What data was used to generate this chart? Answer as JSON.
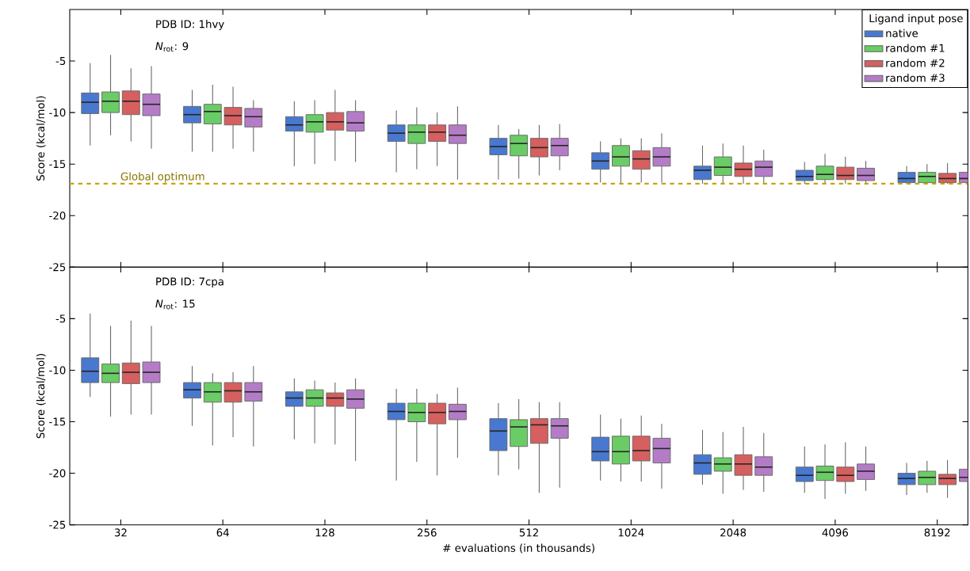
{
  "chart_data": [
    {
      "type": "box",
      "ylabel": "Score (kcal/mol)",
      "categories": [
        "32",
        "64",
        "128",
        "256",
        "512",
        "1024",
        "2048",
        "4096",
        "8192"
      ],
      "ylim": [
        -25,
        0
      ],
      "yticks": [
        -5,
        -10,
        -15,
        -20,
        -25
      ],
      "tick_labels": "y",
      "legend": "top right",
      "legend_title": "Ligand input pose",
      "grid": false,
      "annotations": [
        "PDB ID: 1hvy",
        "*N*$_{rot}$: 9"
      ],
      "ref_lines": [
        {
          "axis": "y",
          "value": -16.9,
          "label": "Global optimum",
          "color": "#c4a400",
          "line_style": "dashed"
        }
      ],
      "series": [
        {
          "name": "native",
          "color": "#4878cf",
          "boxes": [
            {
              "low": -13.2,
              "q1": -10.1,
              "median": -9.0,
              "q3": -8.1,
              "high": -5.2
            },
            {
              "low": -13.8,
              "q1": -11.0,
              "median": -10.2,
              "q3": -9.4,
              "high": -7.8
            },
            {
              "low": -15.2,
              "q1": -11.8,
              "median": -11.2,
              "q3": -10.4,
              "high": -8.9
            },
            {
              "low": -15.8,
              "q1": -12.8,
              "median": -12.0,
              "q3": -11.2,
              "high": -9.8
            },
            {
              "low": -16.5,
              "q1": -14.1,
              "median": -13.3,
              "q3": -12.5,
              "high": -11.2
            },
            {
              "low": -16.8,
              "q1": -15.5,
              "median": -14.7,
              "q3": -13.9,
              "high": -12.8
            },
            {
              "low": -16.9,
              "q1": -16.5,
              "median": -15.6,
              "q3": -15.2,
              "high": -13.2
            },
            {
              "low": -16.9,
              "q1": -16.6,
              "median": -16.2,
              "q3": -15.6,
              "high": -14.8
            },
            {
              "low": -16.9,
              "q1": -16.8,
              "median": -16.4,
              "q3": -15.8,
              "high": -15.2
            }
          ]
        },
        {
          "name": "random #1",
          "color": "#6acc65",
          "boxes": [
            {
              "low": -12.2,
              "q1": -10.0,
              "median": -8.9,
              "q3": -8.0,
              "high": -4.4
            },
            {
              "low": -13.8,
              "q1": -11.1,
              "median": -9.9,
              "q3": -9.2,
              "high": -7.3
            },
            {
              "low": -15.0,
              "q1": -11.9,
              "median": -10.9,
              "q3": -10.2,
              "high": -8.8
            },
            {
              "low": -15.5,
              "q1": -13.0,
              "median": -11.9,
              "q3": -11.2,
              "high": -9.5
            },
            {
              "low": -16.4,
              "q1": -14.2,
              "median": -13.0,
              "q3": -12.2,
              "high": -11.6
            },
            {
              "low": -16.9,
              "q1": -15.2,
              "median": -14.3,
              "q3": -13.2,
              "high": -12.5
            },
            {
              "low": -16.9,
              "q1": -16.1,
              "median": -15.3,
              "q3": -14.3,
              "high": -13.0
            },
            {
              "low": -16.9,
              "q1": -16.5,
              "median": -16.0,
              "q3": -15.2,
              "high": -14.0
            },
            {
              "low": -16.9,
              "q1": -16.8,
              "median": -16.2,
              "q3": -15.8,
              "high": -15.0
            }
          ]
        },
        {
          "name": "random #2",
          "color": "#d65f5f",
          "boxes": [
            {
              "low": -12.8,
              "q1": -10.2,
              "median": -8.9,
              "q3": -7.9,
              "high": -5.7
            },
            {
              "low": -13.5,
              "q1": -11.2,
              "median": -10.3,
              "q3": -9.5,
              "high": -7.5
            },
            {
              "low": -14.7,
              "q1": -11.7,
              "median": -10.9,
              "q3": -10.0,
              "high": -7.8
            },
            {
              "low": -15.2,
              "q1": -12.8,
              "median": -11.9,
              "q3": -11.2,
              "high": -10.0
            },
            {
              "low": -16.1,
              "q1": -14.3,
              "median": -13.4,
              "q3": -12.5,
              "high": -11.2
            },
            {
              "low": -16.8,
              "q1": -15.5,
              "median": -14.5,
              "q3": -13.7,
              "high": -12.5
            },
            {
              "low": -16.9,
              "q1": -16.2,
              "median": -15.5,
              "q3": -14.9,
              "high": -13.2
            },
            {
              "low": -16.9,
              "q1": -16.5,
              "median": -16.1,
              "q3": -15.3,
              "high": -14.3
            },
            {
              "low": -16.9,
              "q1": -16.8,
              "median": -16.4,
              "q3": -15.9,
              "high": -14.9
            }
          ]
        },
        {
          "name": "random #3",
          "color": "#b47cc7",
          "boxes": [
            {
              "low": -13.5,
              "q1": -10.3,
              "median": -9.2,
              "q3": -8.2,
              "high": -5.5
            },
            {
              "low": -13.8,
              "q1": -11.4,
              "median": -10.4,
              "q3": -9.6,
              "high": -8.8
            },
            {
              "low": -14.8,
              "q1": -11.8,
              "median": -11.0,
              "q3": -9.9,
              "high": -8.8
            },
            {
              "low": -16.5,
              "q1": -13.0,
              "median": -12.2,
              "q3": -11.2,
              "high": -9.4
            },
            {
              "low": -15.6,
              "q1": -14.2,
              "median": -13.2,
              "q3": -12.5,
              "high": -11.1
            },
            {
              "low": -16.8,
              "q1": -15.2,
              "median": -14.3,
              "q3": -13.4,
              "high": -12.0
            },
            {
              "low": -16.9,
              "q1": -16.2,
              "median": -15.3,
              "q3": -14.7,
              "high": -13.6
            },
            {
              "low": -16.9,
              "q1": -16.6,
              "median": -16.1,
              "q3": -15.4,
              "high": -14.7
            },
            {
              "low": -16.9,
              "q1": -16.8,
              "median": -16.4,
              "q3": -15.8,
              "high": -15.2
            }
          ]
        }
      ]
    },
    {
      "type": "box",
      "ylabel": "Score (kcal/mol)",
      "xlabel": "# evaluations (in thousands)",
      "categories": [
        "32",
        "64",
        "128",
        "256",
        "512",
        "1024",
        "2048",
        "4096",
        "8192"
      ],
      "ylim": [
        -25,
        0
      ],
      "yticks": [
        -5,
        -10,
        -15,
        -20,
        -25
      ],
      "grid": false,
      "annotations": [
        "PDB ID: 7cpa",
        "*N*$_{rot}$: 15"
      ],
      "series": [
        {
          "color": "#4878cf",
          "boxes": [
            {
              "low": -12.6,
              "q1": -11.2,
              "median": -10.1,
              "q3": -8.8,
              "high": -4.5
            },
            {
              "low": -15.4,
              "q1": -12.7,
              "median": -11.9,
              "q3": -11.2,
              "high": -9.6
            },
            {
              "low": -16.7,
              "q1": -13.5,
              "median": -12.7,
              "q3": -12.1,
              "high": -10.8
            },
            {
              "low": -20.7,
              "q1": -14.8,
              "median": -14.0,
              "q3": -13.2,
              "high": -11.8
            },
            {
              "low": -20.2,
              "q1": -17.8,
              "median": -15.9,
              "q3": -14.7,
              "high": -13.2
            },
            {
              "low": -20.7,
              "q1": -18.8,
              "median": -17.9,
              "q3": -16.5,
              "high": -14.3
            },
            {
              "low": -21.1,
              "q1": -20.1,
              "median": -19.0,
              "q3": -18.2,
              "high": -15.8
            },
            {
              "low": -21.9,
              "q1": -20.8,
              "median": -20.2,
              "q3": -19.4,
              "high": -17.4
            },
            {
              "low": -22.1,
              "q1": -21.1,
              "median": -20.5,
              "q3": -20.0,
              "high": -19.0
            }
          ]
        },
        {
          "color": "#6acc65",
          "boxes": [
            {
              "low": -14.5,
              "q1": -11.2,
              "median": -10.3,
              "q3": -9.4,
              "high": -5.7
            },
            {
              "low": -17.3,
              "q1": -13.1,
              "median": -12.1,
              "q3": -11.2,
              "high": -10.3
            },
            {
              "low": -17.1,
              "q1": -13.5,
              "median": -12.7,
              "q3": -11.9,
              "high": -11.0
            },
            {
              "low": -18.9,
              "q1": -15.0,
              "median": -14.1,
              "q3": -13.2,
              "high": -11.8
            },
            {
              "low": -19.6,
              "q1": -17.4,
              "median": -15.5,
              "q3": -14.8,
              "high": -12.8
            },
            {
              "low": -20.8,
              "q1": -19.1,
              "median": -17.9,
              "q3": -16.4,
              "high": -14.7
            },
            {
              "low": -22.0,
              "q1": -19.8,
              "median": -19.1,
              "q3": -18.5,
              "high": -16.0
            },
            {
              "low": -22.5,
              "q1": -20.7,
              "median": -19.9,
              "q3": -19.3,
              "high": -17.2
            },
            {
              "low": -21.9,
              "q1": -21.1,
              "median": -20.4,
              "q3": -19.8,
              "high": -18.8
            }
          ]
        },
        {
          "color": "#d65f5f",
          "boxes": [
            {
              "low": -14.3,
              "q1": -11.3,
              "median": -10.2,
              "q3": -9.3,
              "high": -5.2
            },
            {
              "low": -16.5,
              "q1": -13.1,
              "median": -12.0,
              "q3": -11.2,
              "high": -10.2
            },
            {
              "low": -17.2,
              "q1": -13.5,
              "median": -12.7,
              "q3": -12.2,
              "high": -11.2
            },
            {
              "low": -20.2,
              "q1": -15.2,
              "median": -14.1,
              "q3": -13.2,
              "high": -12.3
            },
            {
              "low": -21.9,
              "q1": -17.1,
              "median": -15.3,
              "q3": -14.7,
              "high": -13.1
            },
            {
              "low": -20.8,
              "q1": -18.8,
              "median": -17.8,
              "q3": -16.4,
              "high": -14.4
            },
            {
              "low": -21.6,
              "q1": -20.2,
              "median": -19.1,
              "q3": -18.2,
              "high": -15.5
            },
            {
              "low": -22.0,
              "q1": -20.8,
              "median": -20.2,
              "q3": -19.4,
              "high": -17.0
            },
            {
              "low": -22.4,
              "q1": -21.1,
              "median": -20.5,
              "q3": -20.1,
              "high": -18.7
            }
          ]
        },
        {
          "color": "#b47cc7",
          "boxes": [
            {
              "low": -14.3,
              "q1": -11.2,
              "median": -10.2,
              "q3": -9.2,
              "high": -5.7
            },
            {
              "low": -17.4,
              "q1": -13.0,
              "median": -12.1,
              "q3": -11.2,
              "high": -9.6
            },
            {
              "low": -18.8,
              "q1": -13.7,
              "median": -12.8,
              "q3": -11.9,
              "high": -10.8
            },
            {
              "low": -18.5,
              "q1": -14.8,
              "median": -14.0,
              "q3": -13.3,
              "high": -11.7
            },
            {
              "low": -21.4,
              "q1": -16.6,
              "median": -15.4,
              "q3": -14.7,
              "high": -13.1
            },
            {
              "low": -21.5,
              "q1": -19.0,
              "median": -17.6,
              "q3": -16.6,
              "high": -15.2
            },
            {
              "low": -21.8,
              "q1": -20.2,
              "median": -19.4,
              "q3": -18.4,
              "high": -16.1
            },
            {
              "low": -21.7,
              "q1": -20.6,
              "median": -19.8,
              "q3": -19.1,
              "high": -17.4
            },
            {
              "low": -21.5,
              "q1": -20.8,
              "median": -20.4,
              "q3": -19.6,
              "high": -18.7
            }
          ]
        }
      ]
    }
  ]
}
